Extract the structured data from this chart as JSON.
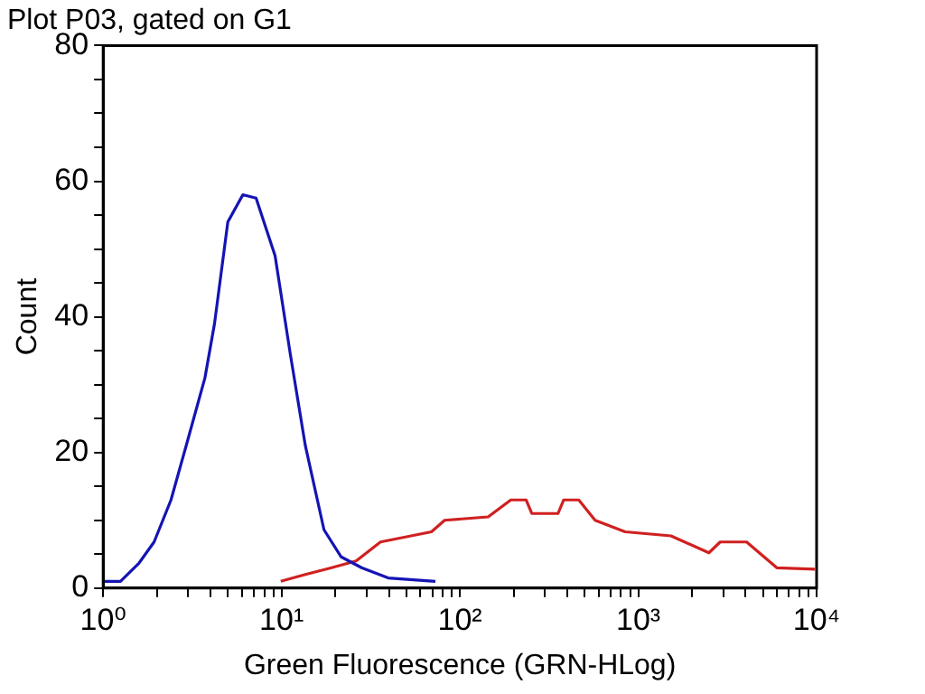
{
  "chart_data": {
    "type": "line",
    "title": "Plot P03, gated on G1",
    "xlabel": "Green Fluorescence (GRN-HLog)",
    "ylabel": "Count",
    "log": "x",
    "grid": false,
    "legend": false,
    "marker": "none",
    "line_style": "solid",
    "xlim": [
      1,
      10000
    ],
    "xticks": [
      {
        "value": 1,
        "label": "10⁰"
      },
      {
        "value": 2,
        "label": null
      },
      {
        "value": 3,
        "label": null
      },
      {
        "value": 4,
        "label": null
      },
      {
        "value": 5,
        "label": null
      },
      {
        "value": 6,
        "label": null
      },
      {
        "value": 7,
        "label": null
      },
      {
        "value": 8,
        "label": null
      },
      {
        "value": 9,
        "label": null
      },
      {
        "value": 10,
        "label": "10¹"
      },
      {
        "value": 20,
        "label": null
      },
      {
        "value": 30,
        "label": null
      },
      {
        "value": 40,
        "label": null
      },
      {
        "value": 50,
        "label": null
      },
      {
        "value": 60,
        "label": null
      },
      {
        "value": 70,
        "label": null
      },
      {
        "value": 80,
        "label": null
      },
      {
        "value": 90,
        "label": null
      },
      {
        "value": 100,
        "label": "10²"
      },
      {
        "value": 200,
        "label": null
      },
      {
        "value": 300,
        "label": null
      },
      {
        "value": 400,
        "label": null
      },
      {
        "value": 500,
        "label": null
      },
      {
        "value": 600,
        "label": null
      },
      {
        "value": 700,
        "label": null
      },
      {
        "value": 800,
        "label": null
      },
      {
        "value": 900,
        "label": null
      },
      {
        "value": 1000,
        "label": "10³"
      },
      {
        "value": 2000,
        "label": null
      },
      {
        "value": 3000,
        "label": null
      },
      {
        "value": 4000,
        "label": null
      },
      {
        "value": 5000,
        "label": null
      },
      {
        "value": 6000,
        "label": null
      },
      {
        "value": 7000,
        "label": null
      },
      {
        "value": 8000,
        "label": null
      },
      {
        "value": 9000,
        "label": null
      },
      {
        "value": 10000,
        "label": "10⁴"
      }
    ],
    "ylim": [
      0,
      80
    ],
    "yticks": [
      0,
      {
        "value": 5,
        "label": null
      },
      {
        "value": 10,
        "label": null
      },
      {
        "value": 15,
        "label": null
      },
      20,
      {
        "value": 25,
        "label": null
      },
      {
        "value": 30,
        "label": null
      },
      {
        "value": 35,
        "label": null
      },
      40,
      {
        "value": 45,
        "label": null
      },
      {
        "value": 50,
        "label": null
      },
      {
        "value": 55,
        "label": null
      },
      60,
      {
        "value": 65,
        "label": null
      },
      {
        "value": 70,
        "label": null
      },
      {
        "value": 75,
        "label": null
      },
      80
    ],
    "series": [
      {
        "color": "#1414b4",
        "x": [
          1.02,
          1.25,
          1.59,
          1.93,
          2.4,
          2.92,
          3.72,
          4.21,
          5.0,
          6.07,
          7.2,
          9.2,
          11.2,
          13.6,
          17.3,
          21.6,
          28.1,
          39.6,
          72.9
        ],
        "values": [
          1,
          1,
          3.7,
          6.8,
          13,
          21,
          31,
          39,
          54,
          58,
          57.5,
          49,
          34.5,
          21,
          8.6,
          4.6,
          3,
          1.5,
          1
        ]
      },
      {
        "color": "#d02020",
        "x": [
          9.9,
          13.6,
          19.1,
          26.2,
          35.9,
          69.3,
          82.1,
          144,
          193,
          235,
          253,
          355,
          382,
          464,
          573,
          844,
          1525,
          2490,
          2880,
          4050,
          5980,
          9790
        ],
        "values": [
          1,
          2,
          3,
          4,
          6.8,
          8.3,
          10,
          10.5,
          13,
          13,
          11,
          11,
          13,
          13,
          10,
          8.3,
          7.7,
          5.2,
          6.8,
          6.8,
          3,
          2.8
        ]
      }
    ]
  }
}
